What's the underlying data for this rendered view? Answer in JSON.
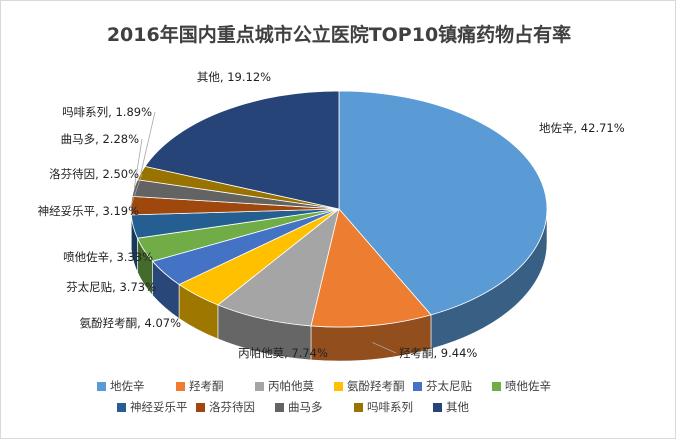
{
  "chart_data": {
    "type": "pie",
    "title": "2016年国内重点城市公立医院TOP10镇痛药物占有率",
    "legend_position": "bottom",
    "slices": [
      {
        "name": "地佐辛",
        "value": 42.71,
        "label": "地佐辛, 42.71%",
        "color": "#5b9bd5"
      },
      {
        "name": "羟考酮",
        "value": 9.44,
        "label": "羟考酮, 9.44%",
        "color": "#ed7d31"
      },
      {
        "name": "丙帕他莫",
        "value": 7.74,
        "label": "丙帕他莫, 7.74%",
        "color": "#a5a5a5"
      },
      {
        "name": "氨酚羟考酮",
        "value": 4.07,
        "label": "氨酚羟考酮, 4.07%",
        "color": "#ffc000"
      },
      {
        "name": "芬太尼贴",
        "value": 3.73,
        "label": "芬太尼贴, 3.73%",
        "color": "#4472c4"
      },
      {
        "name": "喷他佐辛",
        "value": 3.33,
        "label": "喷他佐辛, 3.33%",
        "color": "#70ad47"
      },
      {
        "name": "神经妥乐平",
        "value": 3.19,
        "label": "神经妥乐平, 3.19%",
        "color": "#255e91"
      },
      {
        "name": "洛芬待因",
        "value": 2.5,
        "label": "洛芬待因, 2.50%",
        "color": "#9e480e"
      },
      {
        "name": "曲马多",
        "value": 2.28,
        "label": "曲马多, 2.28%",
        "color": "#636363"
      },
      {
        "name": "吗啡系列",
        "value": 1.89,
        "label": "吗啡系列, 1.89%",
        "color": "#997300"
      },
      {
        "name": "其他",
        "value": 19.12,
        "label": "其他, 19.12%",
        "color": "#264478"
      }
    ]
  }
}
